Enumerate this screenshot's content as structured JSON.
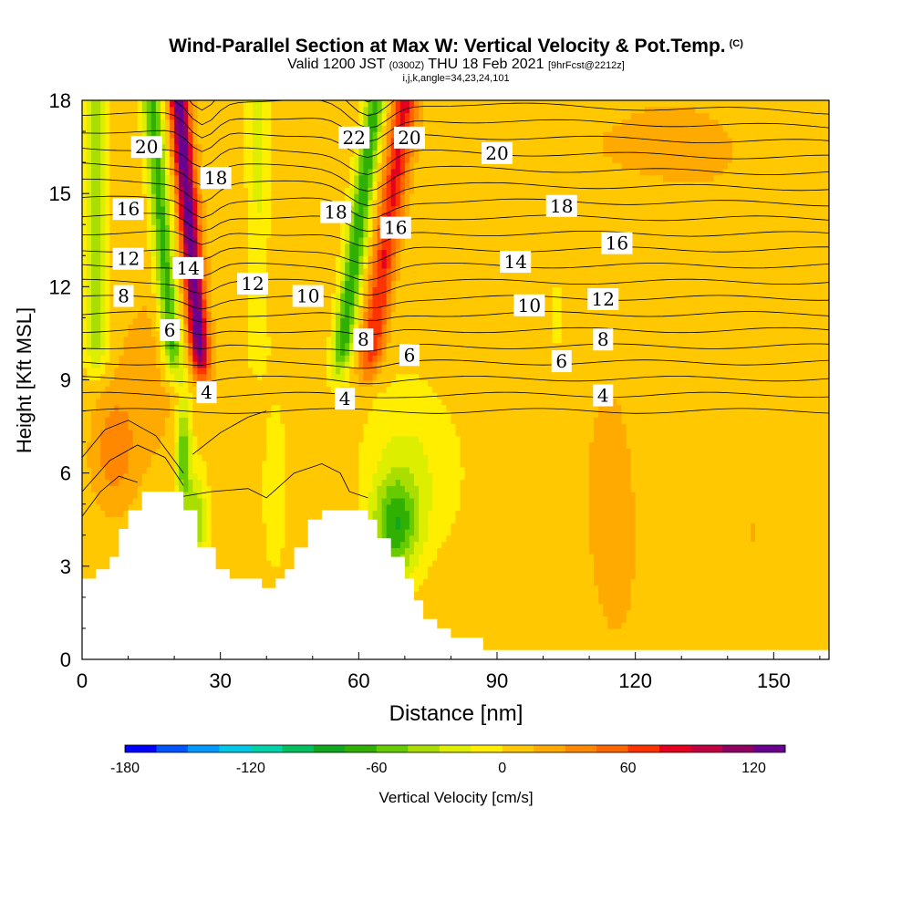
{
  "header": {
    "title": "Wind-Parallel Section at Max W: Vertical Velocity & Pot.Temp.",
    "copyright": "(C)",
    "valid_prefix": "Valid 1200 JST",
    "valid_utc": "(0300Z)",
    "valid_date": "THU 18 Feb 2021",
    "forecast": "[9hrFcst@2212z]",
    "grid_info": "i,j,k,angle=34,23,24,101"
  },
  "chart_data": {
    "type": "heatmap",
    "xlabel": "Distance [nm]",
    "ylabel": "Height [Kft MSL]",
    "xlim": [
      0,
      162
    ],
    "ylim": [
      0,
      18
    ],
    "x_ticks": [
      "0",
      "30",
      "60",
      "90",
      "120",
      "150"
    ],
    "y_ticks": [
      "0",
      "3",
      "6",
      "9",
      "12",
      "15",
      "18"
    ],
    "colorbar": {
      "label": "Vertical Velocity [cm/s]",
      "tick_labels": [
        "-180",
        "-120",
        "-60",
        "0",
        "60",
        "120"
      ],
      "boundaries": [
        -180,
        -165,
        -150,
        -135,
        -120,
        -105,
        -90,
        -75,
        -60,
        -45,
        -30,
        -15,
        0,
        15,
        30,
        45,
        60,
        75,
        90,
        105,
        120,
        135
      ],
      "colors": [
        "#0000ff",
        "#0055ff",
        "#0099ff",
        "#00c8e6",
        "#00d2aa",
        "#00c060",
        "#10a820",
        "#30b000",
        "#66cc00",
        "#aadd00",
        "#ddee00",
        "#ffee00",
        "#ffc800",
        "#ffaa00",
        "#ff8800",
        "#ff6600",
        "#ff3300",
        "#e60020",
        "#c00040",
        "#900060",
        "#6a0090"
      ]
    },
    "terrain_kft": [
      [
        0,
        2.6
      ],
      [
        3,
        2.6
      ],
      [
        3,
        2.9
      ],
      [
        6,
        2.9
      ],
      [
        6,
        3.3
      ],
      [
        8,
        3.3
      ],
      [
        8,
        4.2
      ],
      [
        10,
        4.2
      ],
      [
        10,
        4.8
      ],
      [
        13,
        4.8
      ],
      [
        13,
        5.4
      ],
      [
        22,
        5.4
      ],
      [
        22,
        4.8
      ],
      [
        25,
        4.8
      ],
      [
        25,
        3.6
      ],
      [
        29,
        3.6
      ],
      [
        29,
        2.9
      ],
      [
        32,
        2.9
      ],
      [
        32,
        2.6
      ],
      [
        39,
        2.6
      ],
      [
        39,
        2.3
      ],
      [
        42,
        2.3
      ],
      [
        42,
        2.6
      ],
      [
        44,
        2.6
      ],
      [
        44,
        2.9
      ],
      [
        46,
        2.9
      ],
      [
        46,
        3.6
      ],
      [
        49,
        3.6
      ],
      [
        49,
        4.5
      ],
      [
        52,
        4.5
      ],
      [
        52,
        4.8
      ],
      [
        62,
        4.8
      ],
      [
        62,
        4.5
      ],
      [
        64,
        4.5
      ],
      [
        64,
        3.9
      ],
      [
        67,
        3.9
      ],
      [
        67,
        3.3
      ],
      [
        70,
        3.3
      ],
      [
        70,
        2.6
      ],
      [
        72,
        2.6
      ],
      [
        72,
        1.9
      ],
      [
        74,
        1.9
      ],
      [
        74,
        1.3
      ],
      [
        77,
        1.3
      ],
      [
        77,
        1.0
      ],
      [
        80,
        1.0
      ],
      [
        80,
        0.7
      ],
      [
        87,
        0.7
      ],
      [
        87,
        0.3
      ],
      [
        162,
        0.3
      ]
    ],
    "theta_contours": [
      {
        "label": "4",
        "pos": [
          27,
          8.6
        ]
      },
      {
        "label": "4",
        "pos": [
          57,
          8.4
        ]
      },
      {
        "label": "4",
        "pos": [
          113,
          8.5
        ]
      },
      {
        "label": "6",
        "pos": [
          19,
          10.6
        ]
      },
      {
        "label": "6",
        "pos": [
          71,
          9.8
        ]
      },
      {
        "label": "6",
        "pos": [
          104,
          9.6
        ]
      },
      {
        "label": "8",
        "pos": [
          9,
          11.7
        ]
      },
      {
        "label": "8",
        "pos": [
          61,
          10.3
        ]
      },
      {
        "label": "8",
        "pos": [
          113,
          10.3
        ]
      },
      {
        "label": "10",
        "pos": [
          49,
          11.7
        ]
      },
      {
        "label": "10",
        "pos": [
          97,
          11.4
        ]
      },
      {
        "label": "12",
        "pos": [
          10,
          12.9
        ]
      },
      {
        "label": "12",
        "pos": [
          37,
          12.1
        ]
      },
      {
        "label": "12",
        "pos": [
          113,
          11.6
        ]
      },
      {
        "label": "14",
        "pos": [
          23,
          12.6
        ]
      },
      {
        "label": "14",
        "pos": [
          94,
          12.8
        ]
      },
      {
        "label": "16",
        "pos": [
          10,
          14.5
        ]
      },
      {
        "label": "16",
        "pos": [
          68,
          13.9
        ]
      },
      {
        "label": "16",
        "pos": [
          116,
          13.4
        ]
      },
      {
        "label": "18",
        "pos": [
          29,
          15.5
        ]
      },
      {
        "label": "18",
        "pos": [
          55,
          14.4
        ]
      },
      {
        "label": "18",
        "pos": [
          104,
          14.6
        ]
      },
      {
        "label": "20",
        "pos": [
          14,
          16.5
        ]
      },
      {
        "label": "20",
        "pos": [
          71,
          16.8
        ]
      },
      {
        "label": "20",
        "pos": [
          90,
          16.3
        ]
      },
      {
        "label": "22",
        "pos": [
          59,
          16.8
        ]
      }
    ]
  }
}
